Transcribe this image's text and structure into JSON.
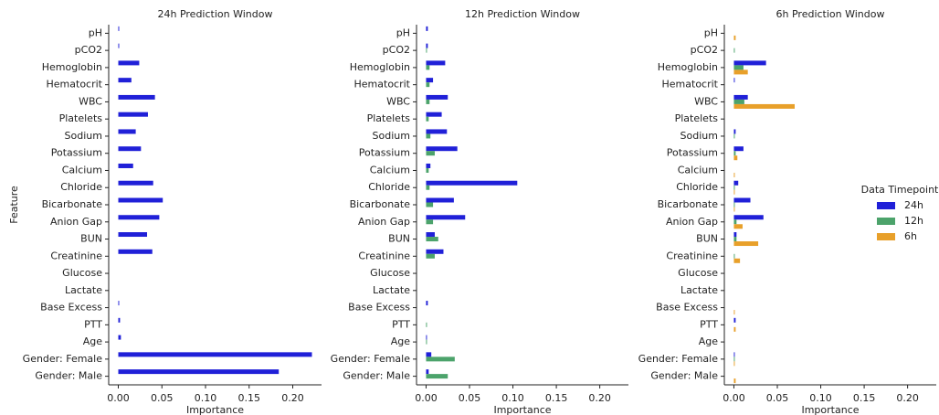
{
  "chart_data": [
    {
      "type": "bar",
      "orientation": "horizontal",
      "title": "24h Prediction Window",
      "xlabel": "Importance",
      "ylabel": "Feature",
      "categories": [
        "pH",
        "pCO2",
        "Hemoglobin",
        "Hematocrit",
        "WBC",
        "Platelets",
        "Sodium",
        "Potassium",
        "Calcium",
        "Chloride",
        "Bicarbonate",
        "Anion Gap",
        "BUN",
        "Creatinine",
        "Glucose",
        "Lactate",
        "Base Excess",
        "PTT",
        "Age",
        "Gender: Female",
        "Gender: Male"
      ],
      "series": [
        {
          "name": "24h",
          "color": "#2020d8",
          "values": [
            0.001,
            0.001,
            0.024,
            0.015,
            0.042,
            0.034,
            0.02,
            0.026,
            0.017,
            0.04,
            0.051,
            0.047,
            0.033,
            0.039,
            0,
            0,
            0.001,
            0.002,
            0.003,
            0.222,
            0.184
          ]
        }
      ],
      "xlim": [
        -0.011,
        0.233
      ],
      "xticks": [
        {
          "value": 0,
          "label": "0.00"
        },
        {
          "value": 0.05,
          "label": "0.05"
        },
        {
          "value": 0.1,
          "label": "0.10"
        },
        {
          "value": 0.15,
          "label": "0.15"
        },
        {
          "value": 0.2,
          "label": "0.20"
        }
      ]
    },
    {
      "type": "bar",
      "orientation": "horizontal",
      "title": "12h Prediction Window",
      "xlabel": "Importance",
      "categories": [
        "pH",
        "pCO2",
        "Hemoglobin",
        "Hematocrit",
        "WBC",
        "Platelets",
        "Sodium",
        "Potassium",
        "Calcium",
        "Chloride",
        "Bicarbonate",
        "Anion Gap",
        "BUN",
        "Creatinine",
        "Glucose",
        "Lactate",
        "Base Excess",
        "PTT",
        "Age",
        "Gender: Female",
        "Gender: Male"
      ],
      "series": [
        {
          "name": "24h",
          "color": "#2020d8",
          "values": [
            0.002,
            0.002,
            0.022,
            0.008,
            0.025,
            0.018,
            0.024,
            0.036,
            0.005,
            0.105,
            0.032,
            0.045,
            0.01,
            0.02,
            0,
            0,
            0.002,
            0,
            0.001,
            0.006,
            0.003
          ]
        },
        {
          "name": "12h",
          "color": "#4ca36b",
          "values": [
            0,
            0.001,
            0.004,
            0.004,
            0.004,
            0.003,
            0.005,
            0.01,
            0.003,
            0.004,
            0.008,
            0.008,
            0.014,
            0.01,
            0,
            0,
            0,
            0.001,
            0.001,
            0.033,
            0.025
          ]
        }
      ],
      "xlim": [
        -0.011,
        0.233
      ],
      "xticks": [
        {
          "value": 0,
          "label": "0.00"
        },
        {
          "value": 0.05,
          "label": "0.05"
        },
        {
          "value": 0.1,
          "label": "0.10"
        },
        {
          "value": 0.15,
          "label": "0.15"
        },
        {
          "value": 0.2,
          "label": "0.20"
        }
      ]
    },
    {
      "type": "bar",
      "orientation": "horizontal",
      "title": "6h Prediction Window",
      "xlabel": "Importance",
      "categories": [
        "pH",
        "pCO2",
        "Hemoglobin",
        "Hematocrit",
        "WBC",
        "Platelets",
        "Sodium",
        "Potassium",
        "Calcium",
        "Chloride",
        "Bicarbonate",
        "Anion Gap",
        "BUN",
        "Creatinine",
        "Glucose",
        "Lactate",
        "Base Excess",
        "PTT",
        "Age",
        "Gender: Female",
        "Gender: Male"
      ],
      "series": [
        {
          "name": "24h",
          "color": "#2020d8",
          "values": [
            0,
            0,
            0.037,
            0.001,
            0.016,
            0,
            0.002,
            0.011,
            0,
            0.005,
            0.019,
            0.034,
            0.003,
            0,
            0,
            0,
            0,
            0.002,
            0,
            0.001,
            0
          ]
        },
        {
          "name": "12h",
          "color": "#4ca36b",
          "values": [
            0,
            0.001,
            0.011,
            0,
            0.012,
            0,
            0.001,
            0.002,
            0,
            0.001,
            0.001,
            0.003,
            0.003,
            0.001,
            0,
            0,
            0,
            0,
            0,
            0.001,
            0
          ]
        },
        {
          "name": "6h",
          "color": "#e8a02a",
          "values": [
            0.002,
            0,
            0.016,
            0,
            0.07,
            0,
            0,
            0.004,
            0.001,
            0.001,
            0.001,
            0.01,
            0.028,
            0.007,
            0,
            0,
            0.001,
            0.002,
            0,
            0.001,
            0.002
          ]
        }
      ],
      "xlim": [
        -0.011,
        0.233
      ],
      "xticks": [
        {
          "value": 0,
          "label": "0.00"
        },
        {
          "value": 0.05,
          "label": "0.05"
        },
        {
          "value": 0.1,
          "label": "0.10"
        },
        {
          "value": 0.15,
          "label": "0.15"
        },
        {
          "value": 0.2,
          "label": "0.20"
        }
      ],
      "legend": "right",
      "legend_title": "Data Timepoint"
    }
  ]
}
